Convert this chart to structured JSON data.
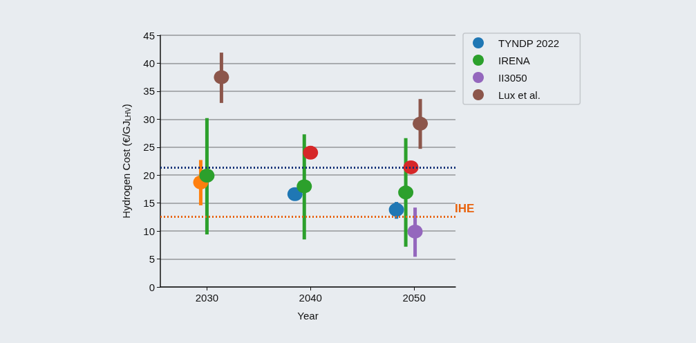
{
  "chart_data": {
    "type": "scatter",
    "xlabel": "Year",
    "ylabel": "Hydrogen Cost (€/GJ$_{LHV}$)",
    "xlim": [
      2025.5,
      2054
    ],
    "xticks": [
      2030,
      2040,
      2050
    ],
    "ylim": [
      0,
      45
    ],
    "yticks": [
      0,
      5,
      10,
      15,
      20,
      25,
      30,
      35,
      40,
      45
    ],
    "grid": "y",
    "legend": "top right",
    "marker": "circle",
    "series": [
      {
        "name": "TYNDP 2022",
        "color": "#1f77b4",
        "x": [
          2038.5,
          2048.3
        ],
        "values": [
          16.6,
          13.8
        ],
        "errors": [
          null,
          [
            12.2,
            15.2
          ]
        ]
      },
      {
        "color": "#ff7f0e",
        "x": [
          2029.4
        ],
        "values": [
          18.7
        ],
        "errors": [
          [
            14.6,
            22.7
          ]
        ]
      },
      {
        "name": "IRENA",
        "color": "#2ca02c",
        "x": [
          2030,
          2039.4,
          2049.2
        ],
        "values": [
          19.9,
          18.0,
          16.9
        ],
        "errors": [
          [
            9.4,
            30.2
          ],
          [
            8.5,
            27.3
          ],
          [
            7.2,
            26.6
          ]
        ]
      },
      {
        "color": "#d62728",
        "x": [
          2040,
          2049.7
        ],
        "values": [
          24.0,
          21.4
        ],
        "errors": [
          null,
          null
        ]
      },
      {
        "name": "II3050",
        "color": "#9467bd",
        "x": [
          2050.1
        ],
        "values": [
          9.9
        ],
        "errors": [
          [
            5.4,
            14.2
          ]
        ]
      },
      {
        "name": "Lux et al.",
        "color": "#8c564b",
        "x": [
          2031.4,
          2050.6
        ],
        "values": [
          37.5,
          29.2
        ],
        "errors": [
          [
            32.9,
            41.9
          ],
          [
            24.7,
            33.6
          ]
        ]
      }
    ],
    "ref_lines": [
      {
        "axis": "y",
        "value": 21.4,
        "color": "#0d2f75",
        "line_style": "dotted"
      },
      {
        "axis": "y",
        "value": 12.6,
        "label": "IHE",
        "color": "#e8620c",
        "line_style": "dotted"
      }
    ]
  }
}
